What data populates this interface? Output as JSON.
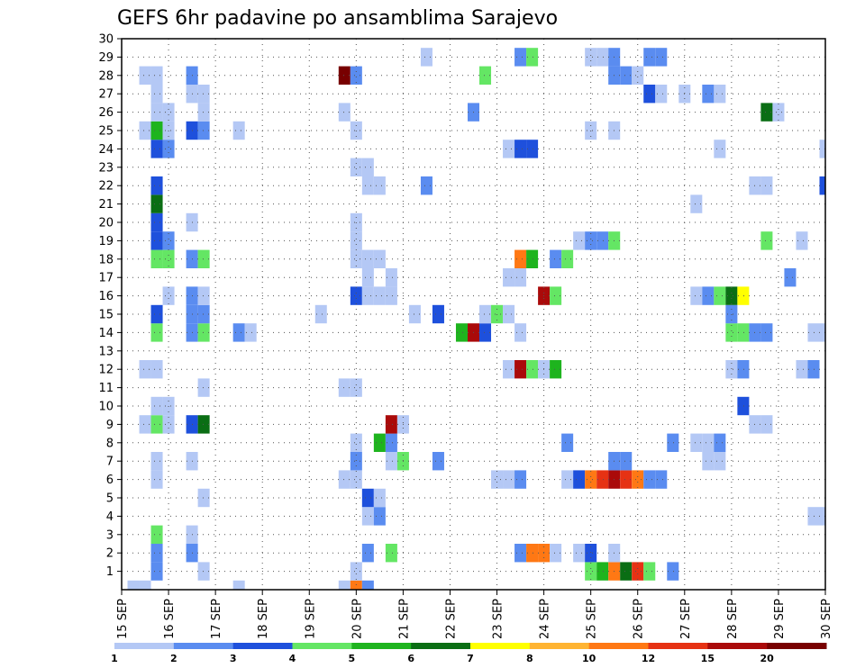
{
  "chart_data": {
    "type": "heatmap",
    "title": "GEFS 6hr padavine po ansamblima Sarajevo",
    "xlabel": "",
    "ylabel": "",
    "x_ticks": [
      "15 SEP",
      "16 SEP",
      "17 SEP",
      "18 SEP",
      "19 SEP",
      "20 SEP",
      "21 SEP",
      "22 SEP",
      "23 SEP",
      "24 SEP",
      "25 SEP",
      "26 SEP",
      "27 SEP",
      "28 SEP",
      "29 SEP",
      "30 SEP"
    ],
    "y_ticks": [
      1,
      2,
      3,
      4,
      5,
      6,
      7,
      8,
      9,
      10,
      11,
      12,
      13,
      14,
      15,
      16,
      17,
      18,
      19,
      20,
      21,
      22,
      23,
      24,
      25,
      26,
      27,
      28,
      29,
      30
    ],
    "xlim": [
      0,
      60
    ],
    "ylim": [
      0,
      30
    ],
    "x_unit": "6-hour steps from 15 SEP 00Z",
    "grid": true,
    "colorbar": {
      "levels": [
        "1",
        "2",
        "3",
        "4",
        "5",
        "6",
        "7",
        "8",
        "10",
        "12",
        "15",
        "20"
      ],
      "colors": [
        "#b4c8f5",
        "#5a8cf0",
        "#1e50dc",
        "#64e664",
        "#1eb41e",
        "#0a6e14",
        "#ffff00",
        "#ffb432",
        "#ff7814",
        "#e63214",
        "#aa0a0a",
        "#780000"
      ]
    },
    "cells_format": "[x_step, member, color_class]",
    "cells": [
      [
        1,
        0,
        0
      ],
      [
        2,
        0,
        0
      ],
      [
        10,
        0,
        0
      ],
      [
        19,
        0,
        0
      ],
      [
        20,
        0,
        8
      ],
      [
        21,
        0,
        1
      ],
      [
        3,
        1,
        1
      ],
      [
        7,
        1,
        0
      ],
      [
        20,
        1,
        0
      ],
      [
        40,
        1,
        3
      ],
      [
        41,
        1,
        4
      ],
      [
        42,
        1,
        8
      ],
      [
        43,
        1,
        5
      ],
      [
        44,
        1,
        9
      ],
      [
        45,
        1,
        3
      ],
      [
        47,
        1,
        1
      ],
      [
        3,
        2,
        1
      ],
      [
        6,
        2,
        1
      ],
      [
        21,
        2,
        1
      ],
      [
        23,
        2,
        3
      ],
      [
        34,
        2,
        1
      ],
      [
        35,
        2,
        8
      ],
      [
        36,
        2,
        8
      ],
      [
        37,
        2,
        0
      ],
      [
        39,
        2,
        0
      ],
      [
        40,
        2,
        2
      ],
      [
        42,
        2,
        0
      ],
      [
        3,
        3,
        3
      ],
      [
        6,
        3,
        0
      ],
      [
        59,
        4,
        0
      ],
      [
        60,
        4,
        0
      ],
      [
        21,
        4,
        0
      ],
      [
        22,
        4,
        1
      ],
      [
        7,
        5,
        0
      ],
      [
        21,
        5,
        2
      ],
      [
        22,
        5,
        0
      ],
      [
        3,
        6,
        0
      ],
      [
        19,
        6,
        0
      ],
      [
        20,
        6,
        0
      ],
      [
        32,
        6,
        0
      ],
      [
        33,
        6,
        0
      ],
      [
        34,
        6,
        1
      ],
      [
        38,
        6,
        0
      ],
      [
        39,
        6,
        2
      ],
      [
        40,
        6,
        8
      ],
      [
        41,
        6,
        9
      ],
      [
        42,
        6,
        10
      ],
      [
        43,
        6,
        9
      ],
      [
        44,
        6,
        8
      ],
      [
        45,
        6,
        1
      ],
      [
        46,
        6,
        1
      ],
      [
        3,
        7,
        0
      ],
      [
        6,
        7,
        0
      ],
      [
        20,
        7,
        1
      ],
      [
        23,
        7,
        0
      ],
      [
        24,
        7,
        3
      ],
      [
        27,
        7,
        1
      ],
      [
        42,
        7,
        1
      ],
      [
        43,
        7,
        1
      ],
      [
        50,
        7,
        0
      ],
      [
        51,
        7,
        0
      ],
      [
        20,
        8,
        0
      ],
      [
        22,
        8,
        4
      ],
      [
        23,
        8,
        1
      ],
      [
        38,
        8,
        1
      ],
      [
        47,
        8,
        1
      ],
      [
        49,
        8,
        0
      ],
      [
        50,
        8,
        0
      ],
      [
        51,
        8,
        1
      ],
      [
        2,
        9,
        0
      ],
      [
        3,
        9,
        3
      ],
      [
        4,
        9,
        0
      ],
      [
        6,
        9,
        2
      ],
      [
        7,
        9,
        5
      ],
      [
        23,
        9,
        10
      ],
      [
        24,
        9,
        0
      ],
      [
        54,
        9,
        0
      ],
      [
        55,
        9,
        0
      ],
      [
        3,
        10,
        0
      ],
      [
        4,
        10,
        0
      ],
      [
        53,
        10,
        2
      ],
      [
        7,
        11,
        0
      ],
      [
        19,
        11,
        0
      ],
      [
        20,
        11,
        0
      ],
      [
        2,
        12,
        0
      ],
      [
        3,
        12,
        0
      ],
      [
        33,
        12,
        0
      ],
      [
        34,
        12,
        10
      ],
      [
        35,
        12,
        3
      ],
      [
        36,
        12,
        0
      ],
      [
        37,
        12,
        4
      ],
      [
        52,
        12,
        0
      ],
      [
        53,
        12,
        1
      ],
      [
        58,
        12,
        0
      ],
      [
        59,
        12,
        1
      ],
      [
        3,
        14,
        3
      ],
      [
        6,
        14,
        1
      ],
      [
        7,
        14,
        3
      ],
      [
        10,
        14,
        1
      ],
      [
        11,
        14,
        0
      ],
      [
        29,
        14,
        4
      ],
      [
        30,
        14,
        10
      ],
      [
        31,
        14,
        2
      ],
      [
        34,
        14,
        0
      ],
      [
        52,
        14,
        3
      ],
      [
        53,
        14,
        3
      ],
      [
        54,
        14,
        1
      ],
      [
        55,
        14,
        1
      ],
      [
        59,
        14,
        0
      ],
      [
        60,
        14,
        0
      ],
      [
        3,
        15,
        2
      ],
      [
        6,
        15,
        1
      ],
      [
        7,
        15,
        1
      ],
      [
        17,
        15,
        0
      ],
      [
        25,
        15,
        0
      ],
      [
        27,
        15,
        2
      ],
      [
        31,
        15,
        0
      ],
      [
        32,
        15,
        3
      ],
      [
        33,
        15,
        0
      ],
      [
        52,
        15,
        1
      ],
      [
        4,
        16,
        0
      ],
      [
        6,
        16,
        1
      ],
      [
        7,
        16,
        0
      ],
      [
        20,
        16,
        2
      ],
      [
        21,
        16,
        0
      ],
      [
        22,
        16,
        0
      ],
      [
        23,
        16,
        0
      ],
      [
        36,
        16,
        10
      ],
      [
        37,
        16,
        3
      ],
      [
        49,
        16,
        0
      ],
      [
        50,
        16,
        1
      ],
      [
        51,
        16,
        3
      ],
      [
        52,
        16,
        5
      ],
      [
        53,
        16,
        6
      ],
      [
        21,
        17,
        0
      ],
      [
        23,
        17,
        0
      ],
      [
        33,
        17,
        0
      ],
      [
        34,
        17,
        0
      ],
      [
        57,
        17,
        1
      ],
      [
        3,
        18,
        3
      ],
      [
        4,
        18,
        3
      ],
      [
        6,
        18,
        1
      ],
      [
        7,
        18,
        3
      ],
      [
        20,
        18,
        0
      ],
      [
        21,
        18,
        0
      ],
      [
        22,
        18,
        0
      ],
      [
        34,
        18,
        8
      ],
      [
        35,
        18,
        4
      ],
      [
        37,
        18,
        1
      ],
      [
        38,
        18,
        3
      ],
      [
        3,
        19,
        2
      ],
      [
        4,
        19,
        1
      ],
      [
        20,
        19,
        0
      ],
      [
        39,
        19,
        0
      ],
      [
        40,
        19,
        1
      ],
      [
        41,
        19,
        1
      ],
      [
        42,
        19,
        3
      ],
      [
        55,
        19,
        3
      ],
      [
        58,
        19,
        0
      ],
      [
        3,
        20,
        2
      ],
      [
        6,
        20,
        0
      ],
      [
        20,
        20,
        0
      ],
      [
        3,
        21,
        5
      ],
      [
        49,
        21,
        0
      ],
      [
        3,
        22,
        2
      ],
      [
        21,
        22,
        0
      ],
      [
        22,
        22,
        0
      ],
      [
        26,
        22,
        1
      ],
      [
        54,
        22,
        0
      ],
      [
        55,
        22,
        0
      ],
      [
        60,
        22,
        2
      ],
      [
        20,
        23,
        0
      ],
      [
        21,
        23,
        0
      ],
      [
        3,
        24,
        2
      ],
      [
        4,
        24,
        1
      ],
      [
        33,
        24,
        0
      ],
      [
        34,
        24,
        2
      ],
      [
        35,
        24,
        2
      ],
      [
        51,
        24,
        0
      ],
      [
        60,
        24,
        0
      ],
      [
        2,
        25,
        0
      ],
      [
        3,
        25,
        4
      ],
      [
        4,
        25,
        0
      ],
      [
        6,
        25,
        2
      ],
      [
        7,
        25,
        1
      ],
      [
        10,
        25,
        0
      ],
      [
        20,
        25,
        0
      ],
      [
        40,
        25,
        0
      ],
      [
        42,
        25,
        0
      ],
      [
        3,
        26,
        0
      ],
      [
        4,
        26,
        0
      ],
      [
        7,
        26,
        0
      ],
      [
        19,
        26,
        0
      ],
      [
        30,
        26,
        1
      ],
      [
        55,
        26,
        5
      ],
      [
        56,
        26,
        0
      ],
      [
        3,
        27,
        0
      ],
      [
        6,
        27,
        0
      ],
      [
        7,
        27,
        0
      ],
      [
        45,
        27,
        2
      ],
      [
        46,
        27,
        0
      ],
      [
        48,
        27,
        0
      ],
      [
        50,
        27,
        1
      ],
      [
        51,
        27,
        0
      ],
      [
        2,
        28,
        0
      ],
      [
        3,
        28,
        0
      ],
      [
        6,
        28,
        1
      ],
      [
        19,
        28,
        11
      ],
      [
        20,
        28,
        1
      ],
      [
        31,
        28,
        3
      ],
      [
        42,
        28,
        1
      ],
      [
        43,
        28,
        1
      ],
      [
        44,
        28,
        0
      ],
      [
        26,
        29,
        0
      ],
      [
        34,
        29,
        1
      ],
      [
        35,
        29,
        3
      ],
      [
        40,
        29,
        0
      ],
      [
        41,
        29,
        0
      ],
      [
        42,
        29,
        1
      ],
      [
        45,
        29,
        1
      ],
      [
        46,
        29,
        1
      ]
    ]
  }
}
